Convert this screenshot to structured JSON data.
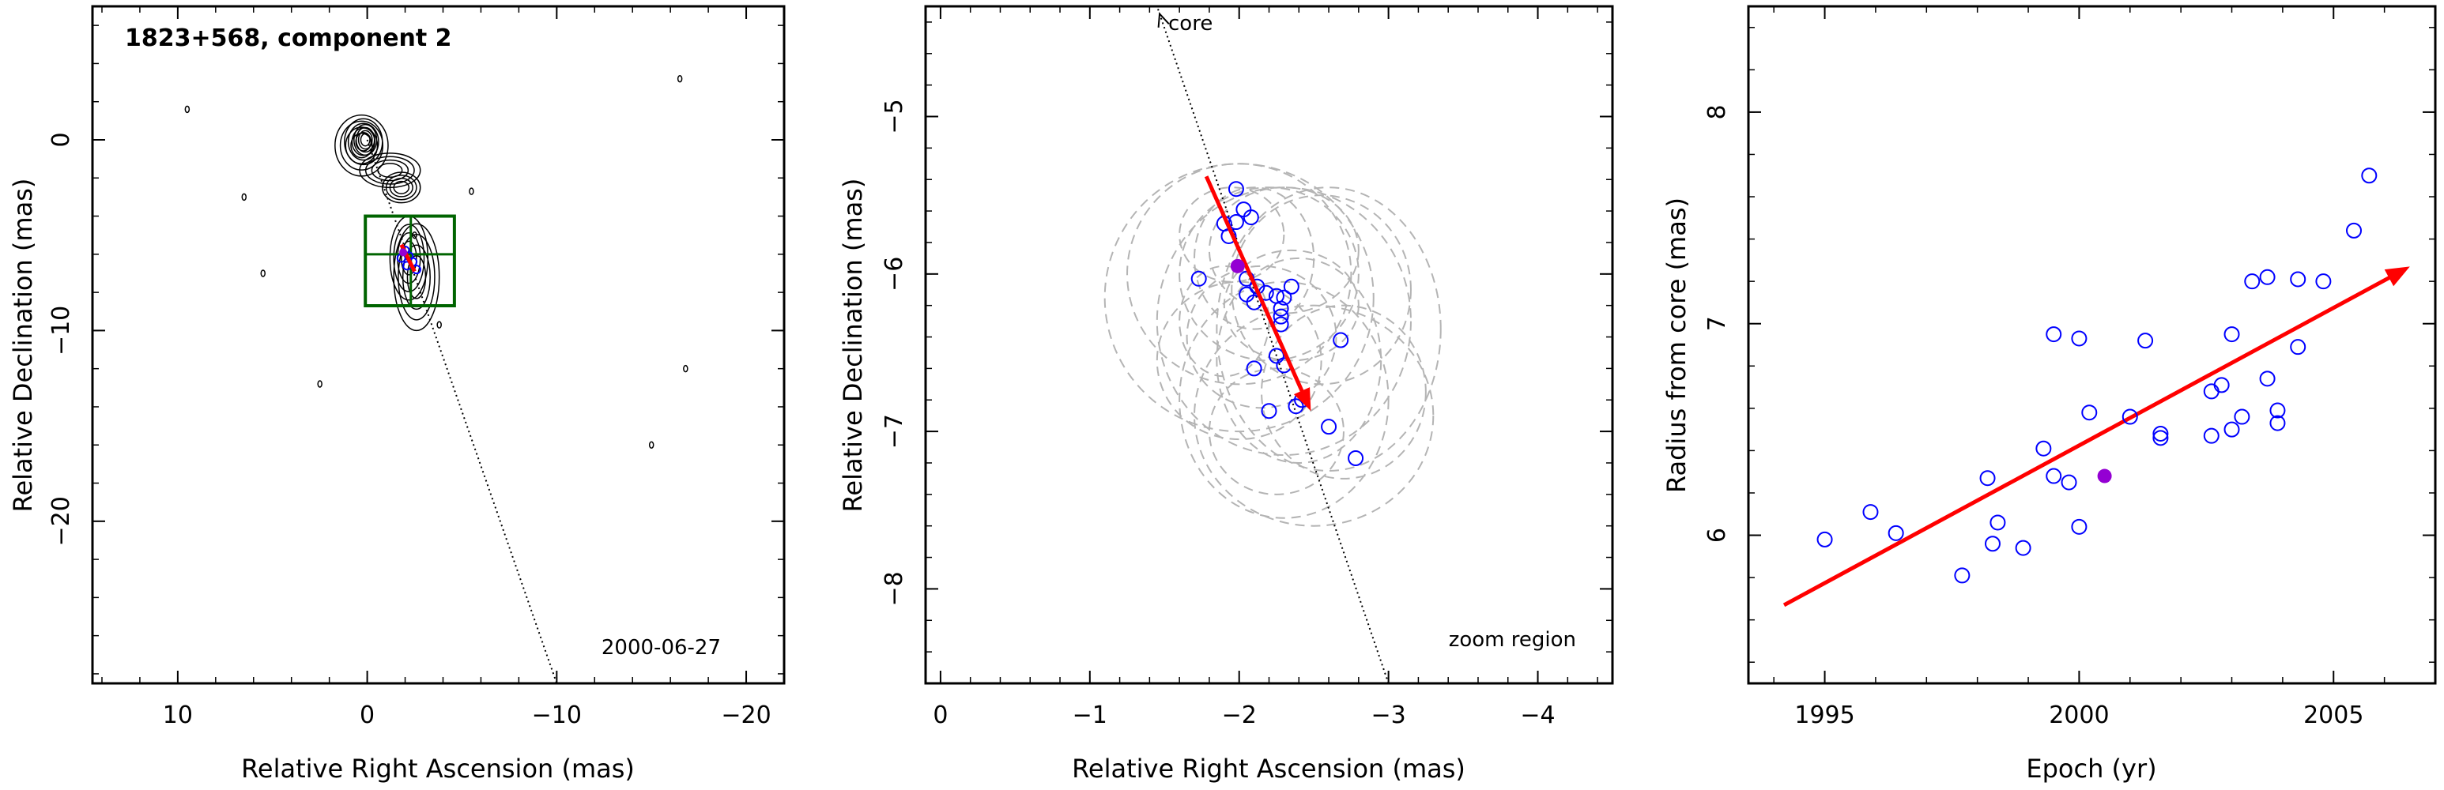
{
  "chart_data": [
    {
      "type": "scatter",
      "panel": "map",
      "title": "1823+568, component 2",
      "annotation": "2000-06-27",
      "xlabel": "Relative Right Ascension (mas)",
      "ylabel": "Relative Declination (mas)",
      "xlim": [
        14.5,
        -22
      ],
      "ylim": [
        -28.5,
        7
      ],
      "x_ticks": [
        10,
        0,
        -10,
        -20
      ],
      "x_tick_labels": [
        "10",
        "0",
        "−10",
        "−20"
      ],
      "y_ticks": [
        0,
        -10,
        -20
      ],
      "y_tick_labels": [
        "0",
        "−10",
        "−20"
      ],
      "core_line": {
        "from": [
          0,
          0
        ],
        "to": [
          -10,
          -28.5
        ]
      },
      "zoom_box": {
        "x": [
          0.1,
          -4.6
        ],
        "y": [
          -4,
          -8.7
        ],
        "split_x": -2.3,
        "split_y": -6
      },
      "jet_contours": [
        {
          "cx": 0.3,
          "cy": -0.3,
          "rx": 1.4,
          "ry": 1.6
        },
        {
          "cx": 0.2,
          "cy": -0.1,
          "rx": 1.0,
          "ry": 1.2
        },
        {
          "cx": 0.1,
          "cy": 0.0,
          "rx": 0.6,
          "ry": 0.8
        },
        {
          "cx": -1.2,
          "cy": -1.6,
          "rx": 1.6,
          "ry": 0.9
        },
        {
          "cx": -1.8,
          "cy": -2.5,
          "rx": 1.0,
          "ry": 0.8
        },
        {
          "cx": -2.2,
          "cy": -6.2,
          "rx": 1.0,
          "ry": 2.2
        },
        {
          "cx": -2.6,
          "cy": -7.2,
          "rx": 1.2,
          "ry": 2.8
        }
      ],
      "specks": [
        [
          9.5,
          1.6
        ],
        [
          6.5,
          -3.0
        ],
        [
          5.5,
          -7.0
        ],
        [
          2.5,
          -12.8
        ],
        [
          -5.5,
          -2.7
        ],
        [
          -16.5,
          3.2
        ],
        [
          -16.8,
          -12.0
        ],
        [
          -15.0,
          -16.0
        ],
        [
          -2.5,
          -5.0
        ],
        [
          -3.8,
          -9.7
        ]
      ],
      "points": [
        [
          -2.0,
          -5.8
        ],
        [
          -2.2,
          -6.1
        ],
        [
          -1.8,
          -6.2
        ],
        [
          -2.4,
          -6.4
        ],
        [
          -2.1,
          -6.6
        ],
        [
          -2.6,
          -6.8
        ]
      ],
      "special_point": [
        -1.9,
        -5.9
      ],
      "arrow": {
        "from": [
          -1.8,
          -5.5
        ],
        "to": [
          -2.5,
          -6.9
        ]
      },
      "colors": {
        "contour": "#000000",
        "box": "#006400",
        "points": "#0000ff",
        "arrow": "#ff0000",
        "special": "#9400d3"
      }
    },
    {
      "type": "scatter",
      "panel": "zoom",
      "annotations": [
        "core",
        "zoom region"
      ],
      "xlabel": "Relative Right Ascension (mas)",
      "ylabel": "Relative Declination (mas)",
      "xlim": [
        0.1,
        -4.5
      ],
      "ylim": [
        -8.6,
        -4.3
      ],
      "x_ticks": [
        0,
        -1,
        -2,
        -3,
        -4
      ],
      "x_tick_labels": [
        "0",
        "−1",
        "−2",
        "−3",
        "−4"
      ],
      "y_ticks": [
        -5,
        -6,
        -7,
        -8
      ],
      "y_tick_labels": [
        "−5",
        "−6",
        "−7",
        "−8"
      ],
      "core_line": {
        "from": [
          -1.45,
          -4.3
        ],
        "to": [
          -3.0,
          -8.6
        ]
      },
      "points": [
        [
          -1.98,
          -5.46
        ],
        [
          -1.98,
          -5.67
        ],
        [
          -2.03,
          -5.59
        ],
        [
          -2.08,
          -5.64
        ],
        [
          -1.9,
          -5.68
        ],
        [
          -1.93,
          -5.76
        ],
        [
          -1.73,
          -6.03
        ],
        [
          -2.05,
          -6.03
        ],
        [
          -2.12,
          -6.08
        ],
        [
          -2.18,
          -6.12
        ],
        [
          -2.25,
          -6.14
        ],
        [
          -2.3,
          -6.15
        ],
        [
          -2.35,
          -6.08
        ],
        [
          -2.05,
          -6.13
        ],
        [
          -2.1,
          -6.18
        ],
        [
          -2.28,
          -6.22
        ],
        [
          -2.28,
          -6.27
        ],
        [
          -2.28,
          -6.32
        ],
        [
          -2.1,
          -6.6
        ],
        [
          -2.25,
          -6.52
        ],
        [
          -2.3,
          -6.58
        ],
        [
          -2.2,
          -6.87
        ],
        [
          -2.38,
          -6.84
        ],
        [
          -2.42,
          -6.8
        ],
        [
          -2.6,
          -6.97
        ],
        [
          -2.68,
          -6.42
        ],
        [
          -2.78,
          -7.17
        ]
      ],
      "special_point": [
        -1.99,
        -5.95
      ],
      "arrow": {
        "from": [
          -1.78,
          -5.38
        ],
        "to": [
          -2.48,
          -6.87
        ]
      },
      "ellipses": [
        {
          "cx": -2.0,
          "cy": -6.0,
          "rx": 0.75,
          "ry": 0.7
        },
        {
          "cx": -2.3,
          "cy": -6.3,
          "rx": 0.85,
          "ry": 0.85
        },
        {
          "cx": -2.6,
          "cy": -6.35,
          "rx": 0.75,
          "ry": 0.9
        },
        {
          "cx": -2.3,
          "cy": -6.8,
          "rx": 0.7,
          "ry": 0.75
        },
        {
          "cx": -2.0,
          "cy": -6.15,
          "rx": 0.9,
          "ry": 0.85
        },
        {
          "cx": -2.5,
          "cy": -6.9,
          "rx": 0.8,
          "ry": 0.7
        },
        {
          "cx": -2.2,
          "cy": -6.0,
          "rx": 0.6,
          "ry": 0.55
        },
        {
          "cx": -2.4,
          "cy": -6.55,
          "rx": 0.55,
          "ry": 0.65
        },
        {
          "cx": -2.15,
          "cy": -6.4,
          "rx": 0.5,
          "ry": 0.45
        },
        {
          "cx": -2.1,
          "cy": -5.9,
          "rx": 0.4,
          "ry": 0.45
        },
        {
          "cx": -2.35,
          "cy": -6.2,
          "rx": 0.45,
          "ry": 0.35
        },
        {
          "cx": -2.0,
          "cy": -6.55,
          "rx": 0.55,
          "ry": 0.5
        },
        {
          "cx": -2.55,
          "cy": -6.1,
          "rx": 0.6,
          "ry": 0.6
        },
        {
          "cx": -2.25,
          "cy": -7.0,
          "rx": 0.45,
          "ry": 0.4
        },
        {
          "cx": -1.95,
          "cy": -5.75,
          "rx": 0.35,
          "ry": 0.3
        },
        {
          "cx": -2.7,
          "cy": -6.75,
          "rx": 0.55,
          "ry": 0.55
        },
        {
          "cx": -2.3,
          "cy": -5.85,
          "rx": 0.5,
          "ry": 0.4
        },
        {
          "cx": -1.9,
          "cy": -6.3,
          "rx": 0.3,
          "ry": 0.35
        }
      ],
      "colors": {
        "points": "#0000ff",
        "arrow": "#ff0000",
        "special": "#9400d3",
        "ellipses": "#b4b4b4"
      }
    },
    {
      "type": "scatter",
      "panel": "radius",
      "xlabel": "Epoch (yr)",
      "ylabel": "Radius from core (mas)",
      "xlim": [
        1993.5,
        2007
      ],
      "ylim": [
        5.3,
        8.5
      ],
      "x_ticks": [
        1995,
        2000,
        2005
      ],
      "x_tick_labels": [
        "1995",
        "2000",
        "2005"
      ],
      "y_ticks": [
        6,
        7,
        8
      ],
      "y_tick_labels": [
        "6",
        "7",
        "8"
      ],
      "points": [
        [
          1995.0,
          5.98
        ],
        [
          1995.9,
          6.11
        ],
        [
          1996.4,
          6.01
        ],
        [
          1997.7,
          5.81
        ],
        [
          1998.2,
          6.27
        ],
        [
          1998.3,
          5.96
        ],
        [
          1998.4,
          6.06
        ],
        [
          1998.9,
          5.94
        ],
        [
          1999.3,
          6.41
        ],
        [
          1999.5,
          6.28
        ],
        [
          1999.5,
          6.95
        ],
        [
          1999.8,
          6.25
        ],
        [
          2000.0,
          6.93
        ],
        [
          2000.0,
          6.04
        ],
        [
          2000.2,
          6.58
        ],
        [
          2001.0,
          6.56
        ],
        [
          2001.3,
          6.92
        ],
        [
          2001.6,
          6.48
        ],
        [
          2001.6,
          6.46
        ],
        [
          2002.6,
          6.68
        ],
        [
          2002.6,
          6.47
        ],
        [
          2002.8,
          6.71
        ],
        [
          2003.0,
          6.95
        ],
        [
          2003.0,
          6.5
        ],
        [
          2003.2,
          6.56
        ],
        [
          2003.4,
          7.2
        ],
        [
          2003.7,
          6.74
        ],
        [
          2003.7,
          7.22
        ],
        [
          2003.9,
          6.59
        ],
        [
          2003.9,
          6.53
        ],
        [
          2004.3,
          6.89
        ],
        [
          2004.3,
          7.21
        ],
        [
          2004.8,
          7.2
        ],
        [
          2005.4,
          7.44
        ],
        [
          2005.7,
          7.7
        ]
      ],
      "special_point": [
        2000.5,
        6.28
      ],
      "arrow": {
        "from": [
          1994.2,
          5.67
        ],
        "to": [
          2006.5,
          7.27
        ]
      },
      "colors": {
        "points": "#0000ff",
        "arrow": "#ff0000",
        "special": "#9400d3"
      }
    }
  ]
}
